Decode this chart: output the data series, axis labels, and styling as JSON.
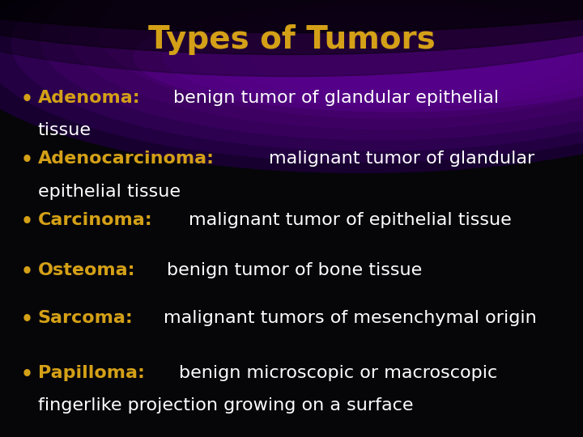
{
  "title": "Types of Tumors",
  "title_color": "#D4A017",
  "title_fontsize": 28,
  "background_color": "#060609",
  "highlight_color": "#D4A017",
  "text_color": "#FFFFFF",
  "bullet_color": "#D4A017",
  "items": [
    {
      "keyword": "Adenoma:",
      "rest": "benign tumor of glandular epithelial",
      "line2": "tissue"
    },
    {
      "keyword": "Adenocarcinoma:",
      "rest": "malignant tumor of glandular",
      "line2": "epithelial tissue"
    },
    {
      "keyword": "Carcinoma:",
      "rest": "malignant tumor of epithelial tissue",
      "line2": ""
    },
    {
      "keyword": "Osteoma:",
      "rest": "benign tumor of bone tissue",
      "line2": ""
    },
    {
      "keyword": "Sarcoma:",
      "rest": "malignant tumors of mesenchymal origin",
      "line2": ""
    },
    {
      "keyword": "Papilloma:",
      "rest": "benign microscopic or macroscopic",
      "line2": "fingerlike projection growing on a surface"
    }
  ],
  "body_fontsize": 16,
  "figsize": [
    7.2,
    5.4
  ],
  "dpi": 100
}
